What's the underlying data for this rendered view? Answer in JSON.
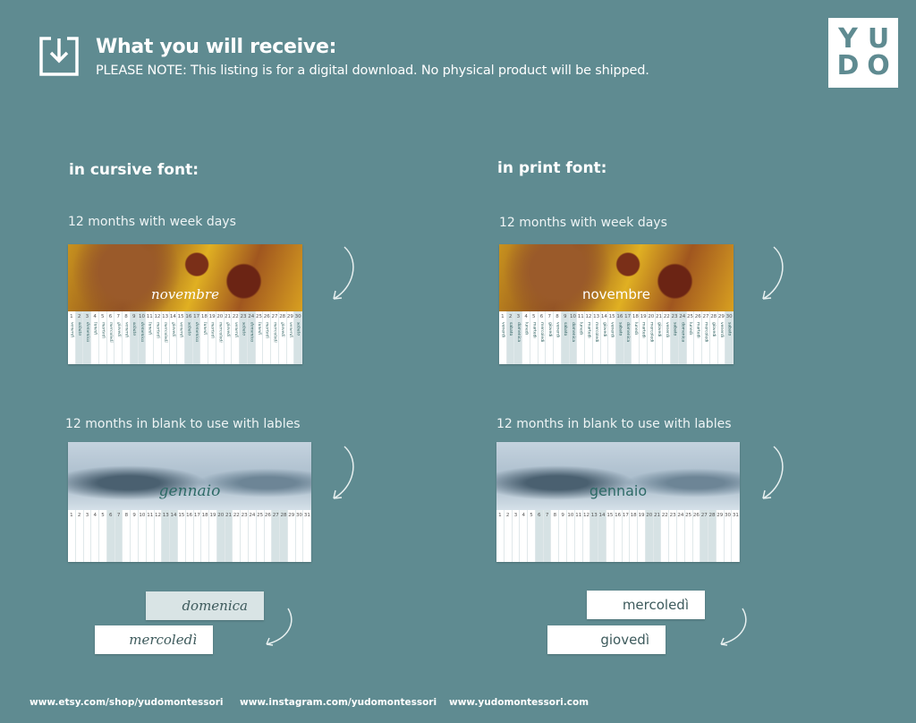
{
  "header": {
    "title": "What you will receive:",
    "note": "PLEASE NOTE: This listing is for a digital download. No physical product will be shipped.",
    "icon": "download-icon"
  },
  "logo": {
    "letters": [
      "Y",
      "U",
      "D",
      "O"
    ]
  },
  "colors": {
    "background": "#5f8b91",
    "weekend_shade": "#d6e2e4"
  },
  "cursive": {
    "heading": "in cursive font:",
    "weekdays_title": "12 months with week days",
    "blank_title": "12 months in blank to use with lables",
    "labels": [
      "domenica",
      "mercoledì"
    ]
  },
  "print": {
    "heading": "in print font:",
    "weekdays_title": "12 months with week days",
    "blank_title": "12 months in blank to use with lables",
    "labels": [
      "mercoledì",
      "giovedì"
    ]
  },
  "november": {
    "name": "novembre",
    "weekend_days": [
      2,
      3,
      9,
      10,
      16,
      17,
      23,
      24,
      30
    ],
    "weekdays": [
      "venerdì",
      "sabato",
      "domenica",
      "lunedì",
      "martedì",
      "mercoledì",
      "giovedì",
      "venerdì",
      "sabato",
      "domenica",
      "lunedì",
      "martedì",
      "mercoledì",
      "giovedì",
      "venerdì",
      "sabato",
      "domenica",
      "lunedì",
      "martedì",
      "mercoledì",
      "giovedì",
      "venerdì",
      "sabato",
      "domenica",
      "lunedì",
      "martedì",
      "mercoledì",
      "giovedì",
      "venerdì",
      "sabato"
    ]
  },
  "january": {
    "name": "gennaio",
    "days": 31,
    "weekend_days": [
      6,
      7,
      13,
      14,
      20,
      21,
      27,
      28
    ]
  },
  "footer": {
    "links": [
      "www.etsy.com/shop/yudomontessori",
      "www.instagram.com/yudomontessori",
      "www.yudomontessori.com"
    ]
  }
}
